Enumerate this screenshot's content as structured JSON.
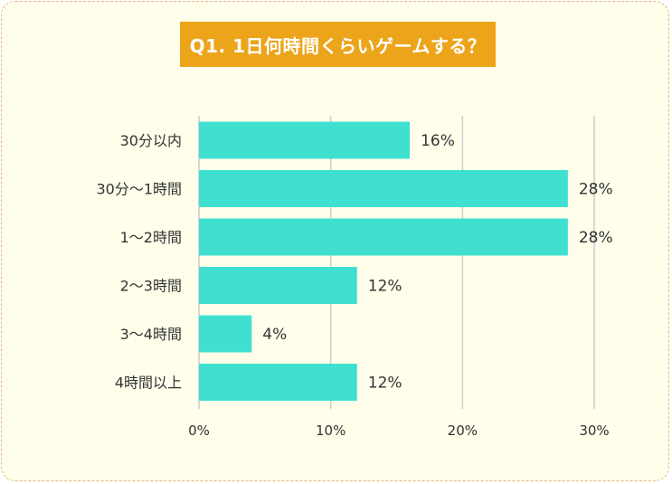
{
  "title": "Q1. 1日何時間くらいゲームする？",
  "chart_data": {
    "type": "bar",
    "orientation": "horizontal",
    "categories": [
      "30分以内",
      "30分～1時間",
      "1～2時間",
      "2～3時間",
      "3～4時間",
      "4時間以上"
    ],
    "values": [
      16,
      28,
      28,
      12,
      4,
      12
    ],
    "value_labels": [
      "16%",
      "28%",
      "28%",
      "12%",
      "4%",
      "12%"
    ],
    "xlim": [
      0,
      30
    ],
    "xticks": [
      0,
      10,
      20,
      30
    ],
    "xtick_labels": [
      "0%",
      "10%",
      "20%",
      "30%"
    ],
    "grid": true,
    "bar_color": "#40e0d0",
    "grid_color": "#cccccc"
  }
}
